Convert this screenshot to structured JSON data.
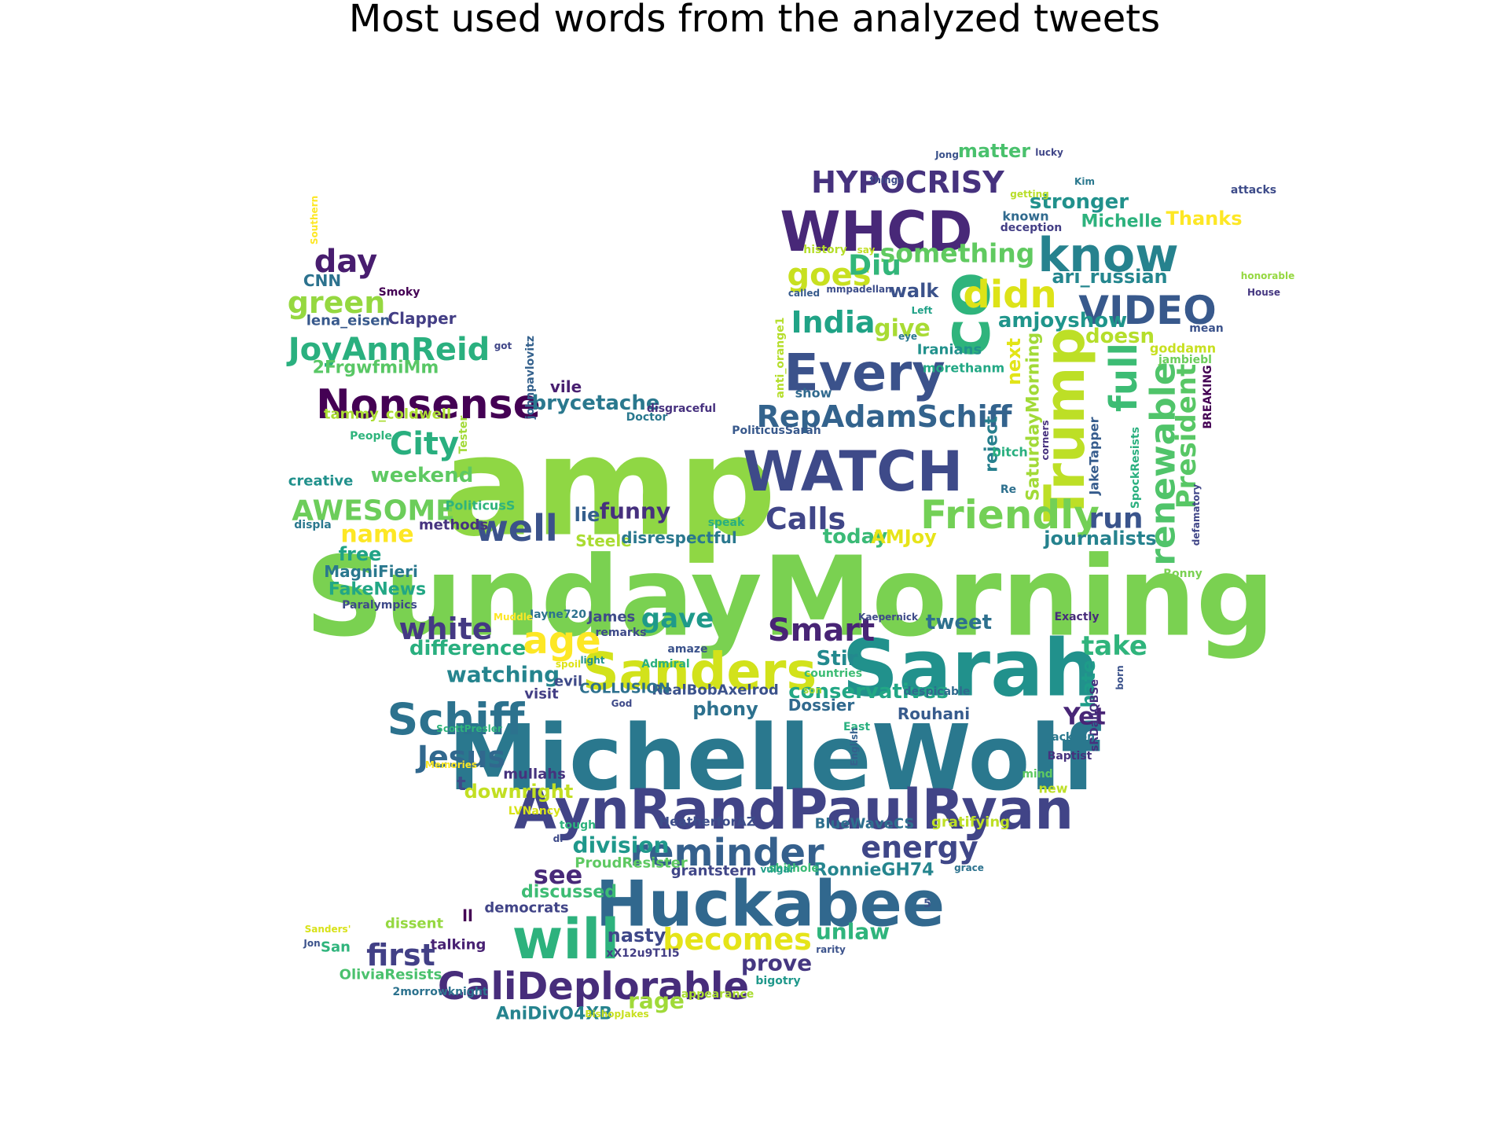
{
  "title": "Most used words from the analyzed tweets",
  "words": [
    {
      "text": "SundayMorning",
      "color": "#7ad151"
    },
    {
      "text": "amp",
      "color": "#8fd744"
    },
    {
      "text": "MichelleWolf",
      "color": "#2a788e"
    },
    {
      "text": "Huckabee",
      "color": "#31688e"
    },
    {
      "text": "AynRandPaulRyan",
      "color": "#414487"
    },
    {
      "text": "Sarah",
      "color": "#21918c"
    },
    {
      "text": "WHCD",
      "color": "#482878"
    },
    {
      "text": "WATCH",
      "color": "#3e4a89"
    },
    {
      "text": "co",
      "color": "#2fb47c"
    },
    {
      "text": "Trump",
      "color": "#bddf26"
    },
    {
      "text": "know",
      "color": "#26828e"
    },
    {
      "text": "Every",
      "color": "#3b528b"
    },
    {
      "text": "Sanders",
      "color": "#d2e21b"
    },
    {
      "text": "will",
      "color": "#2db27d"
    },
    {
      "text": "Schiff",
      "color": "#2c728e"
    },
    {
      "text": "CaliDeplorable",
      "color": "#472d7b"
    },
    {
      "text": "Nonsense",
      "color": "#440154"
    },
    {
      "text": "Friendly",
      "color": "#73d056"
    },
    {
      "text": "reminder",
      "color": "#35608d"
    },
    {
      "text": "VIDEO",
      "color": "#38598c"
    },
    {
      "text": "didn",
      "color": "#dde318"
    },
    {
      "text": "RepAdamSchiff",
      "color": "#33638d"
    },
    {
      "text": "HYPOCRISY",
      "color": "#46327e"
    },
    {
      "text": "JoyAnnReid",
      "color": "#2ab07f"
    },
    {
      "text": "AWESOME",
      "color": "#6ccd5a"
    },
    {
      "text": "age",
      "color": "#fde725"
    },
    {
      "text": "becomes",
      "color": "#e5e419"
    },
    {
      "text": "Smart",
      "color": "#482475"
    },
    {
      "text": "Jesus",
      "color": "#31688e"
    },
    {
      "text": "Calls",
      "color": "#404688"
    },
    {
      "text": "full",
      "color": "#3dbc74"
    },
    {
      "text": "renewable",
      "color": "#50c46a"
    },
    {
      "text": "President",
      "color": "#58c765"
    },
    {
      "text": "India",
      "color": "#20a386"
    },
    {
      "text": "goes",
      "color": "#c8e020"
    },
    {
      "text": "something",
      "color": "#60ca60"
    },
    {
      "text": "well",
      "color": "#3b528b"
    },
    {
      "text": "first",
      "color": "#424086"
    },
    {
      "text": "energy",
      "color": "#3f4788"
    },
    {
      "text": "white",
      "color": "#443983"
    },
    {
      "text": "City",
      "color": "#29af7f"
    },
    {
      "text": "day",
      "color": "#481d6f"
    },
    {
      "text": "green",
      "color": "#95d840"
    },
    {
      "text": "Diu",
      "color": "#32b67a"
    },
    {
      "text": "give",
      "color": "#a8db34"
    },
    {
      "text": "run",
      "color": "#3a548c"
    },
    {
      "text": "gave",
      "color": "#1f9a8a"
    },
    {
      "text": "take",
      "color": "#2fb47c"
    },
    {
      "text": "see",
      "color": "#482979"
    },
    {
      "text": "stronger",
      "color": "#21918c"
    },
    {
      "text": "matter",
      "color": "#4ac16d"
    },
    {
      "text": "amjoyshow",
      "color": "#1f958b"
    },
    {
      "text": "doesn",
      "color": "#b5de2b"
    },
    {
      "text": "next",
      "color": "#e2e418"
    },
    {
      "text": "SaturdayMorning",
      "color": "#a2da37"
    },
    {
      "text": "reject",
      "color": "#277f8e"
    },
    {
      "text": "hate",
      "color": "#1e9c89"
    },
    {
      "text": "Yet",
      "color": "#482576"
    },
    {
      "text": "prove",
      "color": "#453781"
    },
    {
      "text": "rage",
      "color": "#a0da39"
    },
    {
      "text": "unlaw",
      "color": "#2fb47c"
    },
    {
      "text": "nasty",
      "color": "#3f4889"
    },
    {
      "text": "tweet",
      "color": "#2d708e"
    },
    {
      "text": "Stir",
      "color": "#23898e"
    },
    {
      "text": "today",
      "color": "#3aba76"
    },
    {
      "text": "AMJoy",
      "color": "#e7e419"
    },
    {
      "text": "journalists",
      "color": "#26828e"
    },
    {
      "text": "name",
      "color": "#fde725"
    },
    {
      "text": "weekend",
      "color": "#5ec962"
    },
    {
      "text": "funny",
      "color": "#46307e"
    },
    {
      "text": "lie",
      "color": "#355f8d"
    },
    {
      "text": "watching",
      "color": "#25848e"
    },
    {
      "text": "difference",
      "color": "#29af7f"
    },
    {
      "text": "conservatives",
      "color": "#22a785"
    },
    {
      "text": "phony",
      "color": "#2d718e"
    },
    {
      "text": "division",
      "color": "#1f988b"
    },
    {
      "text": "discussed",
      "color": "#3dbc74"
    },
    {
      "text": "downright",
      "color": "#c2df23"
    },
    {
      "text": "brycetache",
      "color": "#2a788e"
    },
    {
      "text": "walk",
      "color": "#3b528b"
    },
    {
      "text": "ari_russian",
      "color": "#24868e"
    },
    {
      "text": "Thanks",
      "color": "#fde725"
    },
    {
      "text": "Michelle",
      "color": "#2db27d"
    },
    {
      "text": "free",
      "color": "#20a386"
    },
    {
      "text": "FakeNews",
      "color": "#22a785"
    },
    {
      "text": "MagniFieri",
      "color": "#2a788e"
    },
    {
      "text": "2FrgwfmiMm",
      "color": "#58c765"
    },
    {
      "text": "Clapper",
      "color": "#433e85"
    },
    {
      "text": "CNN",
      "color": "#2c728e"
    },
    {
      "text": "lena_eisen",
      "color": "#38598c"
    },
    {
      "text": "tammy_coldwell",
      "color": "#aadc32"
    },
    {
      "text": "People",
      "color": "#2fb47c"
    },
    {
      "text": "creative",
      "color": "#21918c"
    },
    {
      "text": "methods",
      "color": "#46337f"
    },
    {
      "text": "Steele",
      "color": "#aadc32"
    },
    {
      "text": "disrespectful",
      "color": "#2a788e"
    },
    {
      "text": "James",
      "color": "#3e4a89"
    },
    {
      "text": "Rouhani",
      "color": "#375b8d"
    },
    {
      "text": "Dossier",
      "color": "#30698e"
    },
    {
      "text": "RonnieGH74",
      "color": "#25858e"
    },
    {
      "text": "grantstern",
      "color": "#404688"
    },
    {
      "text": "BlueWaveCS",
      "color": "#2e6f8e"
    },
    {
      "text": "HeatherforAZ",
      "color": "#3d4d8a"
    },
    {
      "text": "RealBobAxelrod",
      "color": "#3b528b"
    },
    {
      "text": "COLLUSION",
      "color": "#2d708e"
    },
    {
      "text": "AniDivO4XB",
      "color": "#25838e"
    },
    {
      "text": "OliviaResists",
      "color": "#4ac16d"
    },
    {
      "text": "ProudResister",
      "color": "#5ec962"
    },
    {
      "text": "democrats",
      "color": "#414487"
    },
    {
      "text": "talking",
      "color": "#482173"
    },
    {
      "text": "dissent",
      "color": "#95d840"
    },
    {
      "text": "mullahs",
      "color": "#46327e"
    },
    {
      "text": "visit",
      "color": "#433e85"
    },
    {
      "text": "evil",
      "color": "#3e4a89"
    },
    {
      "text": "vile",
      "color": "#481f70"
    },
    {
      "text": "gratifying",
      "color": "#bddf26"
    },
    {
      "text": "attacks",
      "color": "#3e4c8a"
    },
    {
      "text": "House",
      "color": "#453781"
    },
    {
      "text": "honorable",
      "color": "#95d840"
    },
    {
      "text": "Kim",
      "color": "#2a788e"
    },
    {
      "text": "Jong",
      "color": "#3b528b"
    },
    {
      "text": "lucky",
      "color": "#404688"
    },
    {
      "text": "things",
      "color": "#3e4a89"
    },
    {
      "text": "getting",
      "color": "#b8de29"
    },
    {
      "text": "known",
      "color": "#306a8e"
    },
    {
      "text": "deception",
      "color": "#433e85"
    },
    {
      "text": "history",
      "color": "#b5de2b"
    },
    {
      "text": "say",
      "color": "#c2df23"
    },
    {
      "text": "called",
      "color": "#375b8d"
    },
    {
      "text": "mmpadellan",
      "color": "#3d4e8a"
    },
    {
      "text": "Left",
      "color": "#1fa187"
    },
    {
      "text": "Iranians",
      "color": "#21918c"
    },
    {
      "text": "morethanm",
      "color": "#22a884"
    },
    {
      "text": "goddamn",
      "color": "#c8e020"
    },
    {
      "text": "jambiebl",
      "color": "#6ccd5a"
    },
    {
      "text": "mean",
      "color": "#3b528b"
    },
    {
      "text": "bitch",
      "color": "#29af7f"
    },
    {
      "text": "Re",
      "color": "#2d708e"
    },
    {
      "text": "JakeTapper",
      "color": "#365c8d"
    },
    {
      "text": "SpockResists",
      "color": "#2ab07f"
    },
    {
      "text": "BREAKING",
      "color": "#440154"
    },
    {
      "text": "defamatory",
      "color": "#404688"
    },
    {
      "text": "Ronny",
      "color": "#7ad151"
    },
    {
      "text": "Exactly",
      "color": "#472c7a"
    },
    {
      "text": "Kaepernick",
      "color": "#3e4a89"
    },
    {
      "text": "countries",
      "color": "#3dbc74"
    },
    {
      "text": "despicable",
      "color": "#306a8e"
    },
    {
      "text": "sRDailQBSe",
      "color": "#46307e"
    },
    {
      "text": "born",
      "color": "#3b528b"
    },
    {
      "text": "Jackson",
      "color": "#2a788e"
    },
    {
      "text": "Baptist",
      "color": "#46327e"
    },
    {
      "text": "East",
      "color": "#2ab07f"
    },
    {
      "text": "English",
      "color": "#34618d"
    },
    {
      "text": "mind",
      "color": "#5ec962"
    },
    {
      "text": "new",
      "color": "#bddf26"
    },
    {
      "text": "tough",
      "color": "#2db27d"
    },
    {
      "text": "LVNancy",
      "color": "#d8e219"
    },
    {
      "text": "shithole",
      "color": "#3aba76"
    },
    {
      "text": "vulgar",
      "color": "#1f9e89"
    },
    {
      "text": "grace",
      "color": "#2c728e"
    },
    {
      "text": "bigotry",
      "color": "#1f988b"
    },
    {
      "text": "rarity",
      "color": "#3b528b"
    },
    {
      "text": "appearance",
      "color": "#aadc32"
    },
    {
      "text": "BishopJakes",
      "color": "#c8e020"
    },
    {
      "text": "2morrowknight",
      "color": "#2c728e"
    },
    {
      "text": "xX12u9T1I5",
      "color": "#433e85"
    },
    {
      "text": "Sanders'",
      "color": "#d8e219"
    },
    {
      "text": "Jon",
      "color": "#3b528b"
    },
    {
      "text": "San",
      "color": "#2fb47c"
    },
    {
      "text": "Jayne720",
      "color": "#2c728e"
    },
    {
      "text": "Muddle",
      "color": "#fde725"
    },
    {
      "text": "remarks",
      "color": "#3e4a89"
    },
    {
      "text": "amaze",
      "color": "#3b528b"
    },
    {
      "text": "Admiral",
      "color": "#2ab07f"
    },
    {
      "text": "light",
      "color": "#21918c"
    },
    {
      "text": "spoil",
      "color": "#dde318"
    },
    {
      "text": "God",
      "color": "#3e4a89"
    },
    {
      "text": "son",
      "color": "#a8db34"
    },
    {
      "text": "ScottPresler",
      "color": "#2fb47c"
    },
    {
      "text": "Memories",
      "color": "#fde725"
    },
    {
      "text": "Paralympics",
      "color": "#3e4a89"
    },
    {
      "text": "displa",
      "color": "#2a788e"
    },
    {
      "text": "speak",
      "color": "#29af7f"
    },
    {
      "text": "PoliticusS",
      "color": "#2fb47c"
    },
    {
      "text": "PoliticusSarah",
      "color": "#38598c"
    },
    {
      "text": "disgraceful",
      "color": "#46307e"
    },
    {
      "text": "Doctor",
      "color": "#2a788e"
    },
    {
      "text": "johnpavlovitz",
      "color": "#34618d"
    },
    {
      "text": "Tester",
      "color": "#a2da37"
    },
    {
      "text": "got",
      "color": "#404688"
    },
    {
      "text": "Smoky",
      "color": "#440154"
    },
    {
      "text": "Southern",
      "color": "#fde725"
    },
    {
      "text": "show",
      "color": "#30698e"
    },
    {
      "text": "anti_orange1",
      "color": "#b5de2b"
    },
    {
      "text": "eye",
      "color": "#2a788e"
    },
    {
      "text": "corners",
      "color": "#46307e"
    },
    {
      "text": "5",
      "color": "#3b528b"
    },
    {
      "text": "ll",
      "color": "#440154"
    },
    {
      "text": "di",
      "color": "#3e4a89"
    },
    {
      "text": "t",
      "color": "#3e4a89"
    }
  ]
}
